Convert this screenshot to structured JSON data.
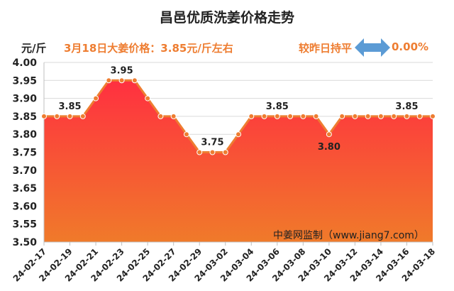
{
  "title": "昌邑优质洗姜价格走势",
  "unit_label": "元/斤",
  "price_note": "3月18日大姜价格：3.85元/斤左右",
  "change_label": "较昨日持平",
  "change_value": "0.00%",
  "source_note": "中姜网监制（www.jiang7.com）",
  "colors": {
    "line": "#ee7d31",
    "area_top": "#ff3040",
    "area_bottom": "#f07a2a",
    "accent_text": "#ee7d31",
    "arrow": "#5b9bd5"
  },
  "icons": {
    "change_indicator": "double-arrow-icon"
  },
  "chart_data": {
    "type": "area",
    "title": "昌邑优质洗姜价格走势",
    "ylabel": "元/斤",
    "ylim": [
      3.5,
      4.0
    ],
    "yticks": [
      "4.00",
      "3.95",
      "3.90",
      "3.85",
      "3.80",
      "3.75",
      "3.70",
      "3.65",
      "3.60",
      "3.55",
      "3.50"
    ],
    "x": [
      "24-02-17",
      "24-02-18",
      "24-02-19",
      "24-02-20",
      "24-02-21",
      "24-02-22",
      "24-02-23",
      "24-02-24",
      "24-02-25",
      "24-02-26",
      "24-02-27",
      "24-02-28",
      "24-02-29",
      "24-03-01",
      "24-03-02",
      "24-03-03",
      "24-03-04",
      "24-03-05",
      "24-03-06",
      "24-03-07",
      "24-03-08",
      "24-03-09",
      "24-03-10",
      "24-03-11",
      "24-03-12",
      "24-03-13",
      "24-03-14",
      "24-03-15",
      "24-03-16",
      "24-03-17",
      "24-03-18"
    ],
    "xtick_labels": [
      "24-02-17",
      "24-02-19",
      "24-02-21",
      "24-02-23",
      "24-02-25",
      "24-02-27",
      "24-02-29",
      "24-03-02",
      "24-03-04",
      "24-03-06",
      "24-03-08",
      "24-03-10",
      "24-03-12",
      "24-03-14",
      "24-03-16",
      "24-03-18"
    ],
    "values": [
      3.85,
      3.85,
      3.85,
      3.85,
      3.9,
      3.95,
      3.95,
      3.95,
      3.9,
      3.85,
      3.85,
      3.8,
      3.75,
      3.75,
      3.75,
      3.8,
      3.85,
      3.85,
      3.85,
      3.85,
      3.85,
      3.85,
      3.8,
      3.85,
      3.85,
      3.85,
      3.85,
      3.85,
      3.85,
      3.85,
      3.85
    ],
    "data_labels": [
      {
        "x": "24-02-19",
        "text": "3.85"
      },
      {
        "x": "24-02-23",
        "text": "3.95"
      },
      {
        "x": "24-03-01",
        "text": "3.75"
      },
      {
        "x": "24-03-06",
        "text": "3.85"
      },
      {
        "x": "24-03-10",
        "text": "3.80"
      },
      {
        "x": "24-03-16",
        "text": "3.85"
      }
    ],
    "grid": true
  }
}
